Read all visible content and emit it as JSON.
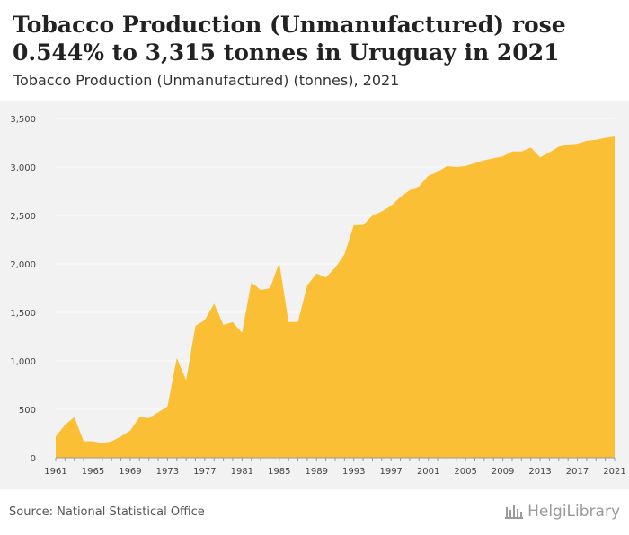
{
  "header": {
    "title": "Tobacco Production (Unmanufactured) rose 0.544% to 3,315 tonnes in Uruguay in 2021",
    "subtitle": "Tobacco Production (Unmanufactured) (tonnes), 2021"
  },
  "footer": {
    "source": "Source: National Statistical Office",
    "logo_text": "HelgiLibrary"
  },
  "colors": {
    "area_fill": "#fbbf36",
    "plot_background": "#f2f2f2",
    "grid": "#ffffff"
  },
  "chart_data": {
    "type": "area",
    "title": "Tobacco Production (Unmanufactured) rose 0.544% to 3,315 tonnes in Uruguay in 2021",
    "subtitle": "Tobacco Production (Unmanufactured) (tonnes), 2021",
    "xlabel": "",
    "ylabel": "",
    "xlim": [
      1961,
      2021
    ],
    "ylim": [
      0,
      3500
    ],
    "yticks": [
      0,
      500,
      1000,
      1500,
      2000,
      2500,
      3000,
      3500
    ],
    "ytick_labels": [
      "0",
      "500",
      "1,000",
      "1,500",
      "2,000",
      "2,500",
      "3,000",
      "3,500"
    ],
    "xticks": [
      1961,
      1965,
      1969,
      1973,
      1977,
      1981,
      1985,
      1989,
      1993,
      1997,
      2001,
      2005,
      2009,
      2013,
      2017,
      2021
    ],
    "grid": true,
    "legend": "none",
    "x": [
      1961,
      1962,
      1963,
      1964,
      1965,
      1966,
      1967,
      1968,
      1969,
      1970,
      1971,
      1972,
      1973,
      1974,
      1975,
      1976,
      1977,
      1978,
      1979,
      1980,
      1981,
      1982,
      1983,
      1984,
      1985,
      1986,
      1987,
      1988,
      1989,
      1990,
      1991,
      1992,
      1993,
      1994,
      1995,
      1996,
      1997,
      1998,
      1999,
      2000,
      2001,
      2002,
      2003,
      2004,
      2005,
      2006,
      2007,
      2008,
      2009,
      2010,
      2011,
      2012,
      2013,
      2014,
      2015,
      2016,
      2017,
      2018,
      2019,
      2020,
      2021
    ],
    "values": [
      220,
      340,
      420,
      170,
      170,
      150,
      170,
      220,
      280,
      420,
      410,
      470,
      530,
      1030,
      800,
      1360,
      1420,
      1590,
      1370,
      1400,
      1290,
      1810,
      1730,
      1750,
      2010,
      1400,
      1400,
      1780,
      1900,
      1860,
      1960,
      2100,
      2400,
      2400,
      2500,
      2540,
      2600,
      2690,
      2760,
      2800,
      2910,
      2950,
      3010,
      3000,
      3010,
      3040,
      3070,
      3090,
      3110,
      3160,
      3160,
      3200,
      3100,
      3150,
      3210,
      3230,
      3240,
      3270,
      3280,
      3300,
      3315
    ]
  }
}
